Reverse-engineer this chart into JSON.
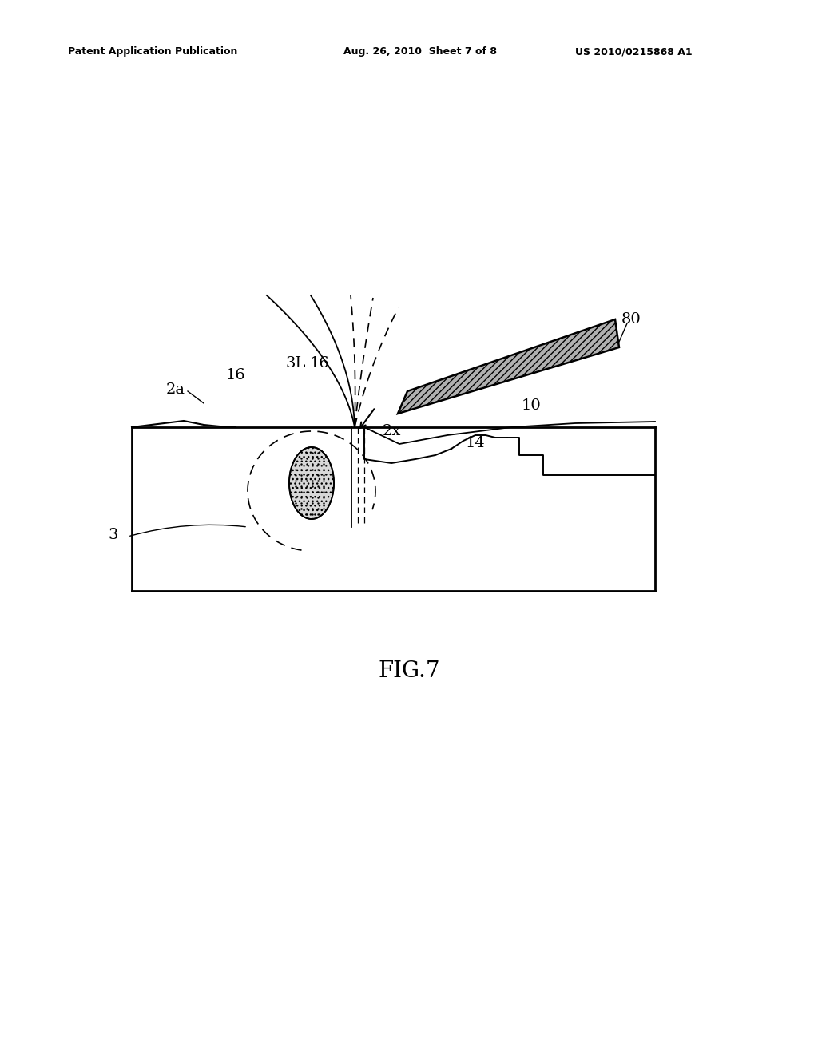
{
  "bg_color": "#ffffff",
  "header_left": "Patent Application Publication",
  "header_mid": "Aug. 26, 2010  Sheet 7 of 8",
  "header_right": "US 2010/0215868 A1",
  "fig_label": "FIG.7"
}
